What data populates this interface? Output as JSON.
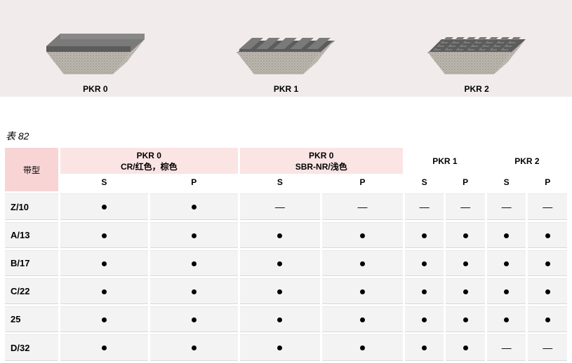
{
  "banner": {
    "bg": "#f1ebeb",
    "belts": [
      {
        "label": "PKR 0",
        "type": "smooth"
      },
      {
        "label": "PKR 1",
        "type": "longitudinal"
      },
      {
        "label": "PKR 2",
        "type": "crosshatch"
      }
    ],
    "colors": {
      "rubber": "#7a7a7a",
      "rubber_shade": "#5c5c5c",
      "base_light": "#bcb8b0",
      "base_dark": "#8c8880"
    }
  },
  "caption": "表 82",
  "rowHeaderTitle": "带型",
  "groupHeaders": [
    {
      "title": "PKR 0",
      "subtitle": "CR/红色，棕色",
      "shaded": true
    },
    {
      "title": "PKR 0",
      "subtitle": "SBR-NR/浅色",
      "shaded": true
    },
    {
      "title": "PKR 1",
      "subtitle": "",
      "shaded": false
    },
    {
      "title": "PKR 2",
      "subtitle": "",
      "shaded": false
    }
  ],
  "subHeaders": [
    "S",
    "P"
  ],
  "rows": [
    {
      "label": "Z/10",
      "v": [
        true,
        true,
        false,
        false,
        false,
        false,
        false,
        false
      ]
    },
    {
      "label": "A/13",
      "v": [
        true,
        true,
        true,
        true,
        true,
        true,
        true,
        true
      ]
    },
    {
      "label": "B/17",
      "v": [
        true,
        true,
        true,
        true,
        true,
        true,
        true,
        true
      ]
    },
    {
      "label": "C/22",
      "v": [
        true,
        true,
        true,
        true,
        true,
        true,
        true,
        true
      ]
    },
    {
      "label": "25",
      "v": [
        true,
        true,
        true,
        true,
        true,
        true,
        true,
        true
      ]
    },
    {
      "label": "D/32",
      "v": [
        true,
        true,
        true,
        true,
        true,
        true,
        false,
        false
      ]
    }
  ],
  "styles": {
    "header_pink": "#f8d4d4",
    "header_light_pink": "#fae4e4",
    "cell_bg": "#f3f3f3"
  }
}
